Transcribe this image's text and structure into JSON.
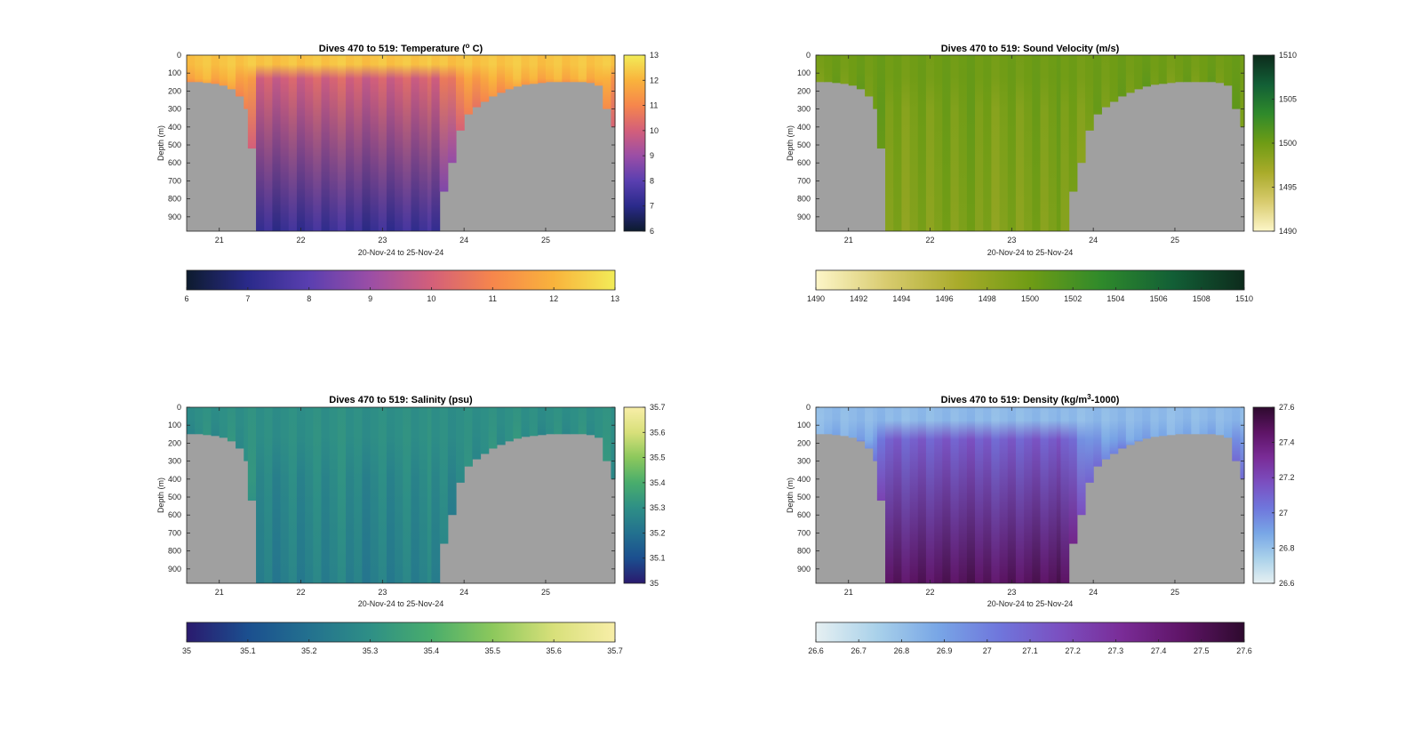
{
  "chart_data": [
    {
      "type": "heatmap",
      "title_main": "Dives 470 to 519: Temperature (",
      "title_sup": "o",
      "title_tail": " C)",
      "xlabel": "20-Nov-24 to 25-Nov-24",
      "ylabel": "Depth (m)",
      "yticks": [
        0,
        100,
        200,
        300,
        400,
        500,
        600,
        700,
        800,
        900
      ],
      "ylim": [
        0,
        980
      ],
      "xticks": [
        {
          "value": 21,
          "label": "21"
        },
        {
          "value": 22,
          "label": "22"
        },
        {
          "value": 23,
          "label": "23"
        },
        {
          "value": 24,
          "label": "24"
        },
        {
          "value": 25,
          "label": "25"
        }
      ],
      "xlim": [
        20.6,
        25.85
      ],
      "colormap": [
        "#0d1b2e",
        "#2a2a8a",
        "#5a3fb0",
        "#9b4ea6",
        "#d35f7a",
        "#f6864c",
        "#f9b33c",
        "#f2ec58"
      ],
      "clim": [
        6,
        13
      ],
      "surface_value": 12.3,
      "deep_value": 7.3,
      "gradient_depth": 130,
      "vcb_ticks": [
        6,
        7,
        8,
        9,
        10,
        11,
        12,
        13
      ],
      "hcb_ticks": [
        6,
        7,
        8,
        9,
        10,
        11,
        12,
        13
      ]
    },
    {
      "type": "heatmap",
      "title_main": "Dives 470 to 519: Sound Velocity (m/s)",
      "title_sup": "",
      "title_tail": "",
      "xlabel": "20-Nov-24 to 25-Nov-24",
      "ylabel": "Depth (m)",
      "yticks": [
        0,
        100,
        200,
        300,
        400,
        500,
        600,
        700,
        800,
        900
      ],
      "ylim": [
        0,
        980
      ],
      "xticks": [
        {
          "value": 21,
          "label": "21"
        },
        {
          "value": 22,
          "label": "22"
        },
        {
          "value": 23,
          "label": "23"
        },
        {
          "value": 24,
          "label": "24"
        },
        {
          "value": 25,
          "label": "25"
        }
      ],
      "xlim": [
        20.6,
        25.85
      ],
      "colormap": [
        "#fdf6c8",
        "#d8cb6e",
        "#a9ab2a",
        "#6f9c15",
        "#2f8a2b",
        "#125f36",
        "#0d2b1c"
      ],
      "clim": [
        1490,
        1510
      ],
      "surface_value": 1500,
      "deep_value": 1499,
      "gradient_depth": 300,
      "vcb_ticks": [
        1490,
        1495,
        1500,
        1505,
        1510
      ],
      "hcb_ticks": [
        1490,
        1492,
        1494,
        1496,
        1498,
        1500,
        1502,
        1504,
        1506,
        1508,
        1510
      ]
    },
    {
      "type": "heatmap",
      "title_main": "Dives 470 to 519: Salinity (psu)",
      "title_sup": "",
      "title_tail": "",
      "xlabel": "20-Nov-24 to 25-Nov-24",
      "ylabel": "Depth (m)",
      "yticks": [
        0,
        100,
        200,
        300,
        400,
        500,
        600,
        700,
        800,
        900
      ],
      "ylim": [
        0,
        980
      ],
      "xticks": [
        {
          "value": 21,
          "label": "21"
        },
        {
          "value": 22,
          "label": "22"
        },
        {
          "value": 23,
          "label": "23"
        },
        {
          "value": 24,
          "label": "24"
        },
        {
          "value": 25,
          "label": "25"
        }
      ],
      "xlim": [
        20.6,
        25.85
      ],
      "colormap": [
        "#2a1a6e",
        "#1b4f8f",
        "#23718f",
        "#2e8f86",
        "#49ad6c",
        "#8cc85c",
        "#d8e07a",
        "#f8eea8"
      ],
      "clim": [
        35,
        35.7
      ],
      "surface_value": 35.3,
      "deep_value": 35.25,
      "gradient_depth": 400,
      "vcb_ticks": [
        35,
        35.1,
        35.2,
        35.3,
        35.4,
        35.5,
        35.6,
        35.7
      ],
      "hcb_ticks": [
        35,
        35.1,
        35.2,
        35.3,
        35.4,
        35.5,
        35.6,
        35.7
      ]
    },
    {
      "type": "heatmap",
      "title_main": "Dives 470 to 519: Density (kg/m",
      "title_sup": "3",
      "title_tail": "-1000)",
      "xlabel": "20-Nov-24 to 25-Nov-24",
      "ylabel": "Depth (m)",
      "yticks": [
        0,
        100,
        200,
        300,
        400,
        500,
        600,
        700,
        800,
        900
      ],
      "ylim": [
        0,
        980
      ],
      "xticks": [
        {
          "value": 21,
          "label": "21"
        },
        {
          "value": 22,
          "label": "22"
        },
        {
          "value": 23,
          "label": "23"
        },
        {
          "value": 24,
          "label": "24"
        },
        {
          "value": 25,
          "label": "25"
        }
      ],
      "xlim": [
        20.6,
        25.85
      ],
      "colormap": [
        "#e6f0f2",
        "#a9d1ea",
        "#78a6e6",
        "#6f76dc",
        "#7b4fc0",
        "#7a2c97",
        "#5e1466",
        "#2e0a2e"
      ],
      "clim": [
        26.6,
        27.6
      ],
      "surface_value": 26.82,
      "deep_value": 27.48,
      "gradient_depth": 180,
      "vcb_ticks": [
        26.6,
        26.8,
        27,
        27.2,
        27.4,
        27.6
      ],
      "hcb_ticks": [
        26.6,
        26.7,
        26.8,
        26.9,
        27,
        27.1,
        27.2,
        27.3,
        27.4,
        27.5,
        27.6
      ]
    }
  ],
  "profile_data": {
    "dive_times": [
      20.6,
      20.7,
      20.8,
      20.9,
      21.0,
      21.1,
      21.2,
      21.3,
      21.35,
      21.45,
      21.55,
      21.65,
      21.75,
      21.85,
      21.95,
      22.05,
      22.15,
      22.25,
      22.35,
      22.45,
      22.55,
      22.65,
      22.75,
      22.85,
      22.95,
      23.05,
      23.15,
      23.25,
      23.35,
      23.45,
      23.55,
      23.6,
      23.7,
      23.8,
      23.9,
      24.0,
      24.1,
      24.2,
      24.3,
      24.4,
      24.5,
      24.6,
      24.7,
      24.8,
      24.9,
      25.0,
      25.1,
      25.2,
      25.3,
      25.4,
      25.5,
      25.6,
      25.7,
      25.8
    ],
    "max_depth": [
      150,
      150,
      155,
      160,
      170,
      190,
      230,
      300,
      520,
      980,
      980,
      980,
      980,
      980,
      980,
      980,
      980,
      980,
      980,
      980,
      980,
      980,
      980,
      980,
      980,
      980,
      980,
      980,
      980,
      980,
      980,
      980,
      760,
      600,
      420,
      330,
      290,
      260,
      230,
      210,
      190,
      175,
      165,
      160,
      155,
      150,
      150,
      150,
      150,
      150,
      155,
      170,
      300,
      400
    ]
  }
}
